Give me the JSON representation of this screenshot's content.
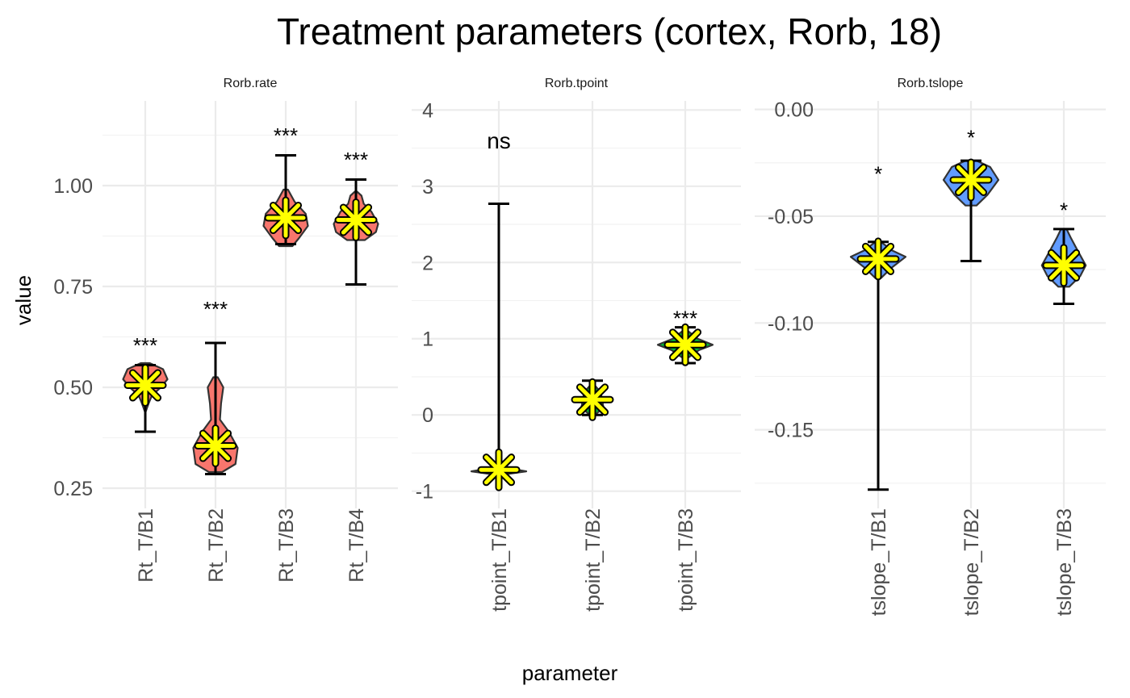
{
  "chart_data": {
    "type": "violin",
    "title": "Treatment parameters (cortex, Rorb, 18)",
    "xlabel": "parameter",
    "ylabel": "value",
    "colors": {
      "rate": "#F8766D",
      "tpoint": "#00BA38",
      "tslope": "#619CFF",
      "mean_marker": "#FFFF00"
    },
    "panels": [
      {
        "strip": "Rorb.rate",
        "color": "#F8766D",
        "ylim": [
          0.22,
          1.21
        ],
        "ticks": [
          0.25,
          0.5,
          0.75,
          1.0
        ],
        "tick_labels": [
          "0.25",
          "0.50",
          "0.75",
          "1.00"
        ],
        "groups": [
          {
            "label": "Rt_T/B1",
            "mean": 0.505,
            "whisker": [
              0.39,
              0.555
            ],
            "box": [
              0.47,
              0.54
            ],
            "sig": "***",
            "sig_y": 0.61,
            "violin": [
              [
                0.44,
                0.02
              ],
              [
                0.46,
                0.15
              ],
              [
                0.48,
                0.3
              ],
              [
                0.5,
                0.7
              ],
              [
                0.52,
                1
              ],
              [
                0.545,
                0.8
              ],
              [
                0.56,
                0.2
              ]
            ]
          },
          {
            "label": "Rt_T/B2",
            "mean": 0.355,
            "whisker": [
              0.285,
              0.61
            ],
            "box": [
              0.33,
              0.39
            ],
            "sig": "***",
            "sig_y": 0.7,
            "violin": [
              [
                0.29,
                0.3
              ],
              [
                0.31,
                0.9
              ],
              [
                0.35,
                1
              ],
              [
                0.39,
                0.6
              ],
              [
                0.42,
                0.2
              ],
              [
                0.46,
                0.25
              ],
              [
                0.5,
                0.35
              ],
              [
                0.525,
                0.1
              ]
            ]
          },
          {
            "label": "Rt_T/B3",
            "mean": 0.92,
            "whisker": [
              0.855,
              1.075
            ],
            "box": [
              0.88,
              0.96
            ],
            "sig": "***",
            "sig_y": 1.13,
            "violin": [
              [
                0.85,
                0.3
              ],
              [
                0.87,
                0.6
              ],
              [
                0.9,
                1
              ],
              [
                0.93,
                0.9
              ],
              [
                0.96,
                0.4
              ],
              [
                0.99,
                0.1
              ]
            ]
          },
          {
            "label": "Rt_T/B4",
            "mean": 0.915,
            "whisker": [
              0.755,
              1.015
            ],
            "box": [
              0.87,
              0.96
            ],
            "sig": "***",
            "sig_y": 1.07,
            "violin": [
              [
                0.865,
                0.4
              ],
              [
                0.885,
                0.9
              ],
              [
                0.905,
                1
              ],
              [
                0.935,
                0.7
              ],
              [
                0.955,
                0.35
              ],
              [
                0.975,
                0.25
              ],
              [
                0.985,
                0.05
              ]
            ]
          }
        ]
      },
      {
        "strip": "Rorb.tpoint",
        "color": "#00BA38",
        "ylim": [
          -1.12,
          4.12
        ],
        "ticks": [
          -1,
          0,
          1,
          2,
          3,
          4
        ],
        "tick_labels": [
          "-1",
          "0",
          "1",
          "2",
          "3",
          "4"
        ],
        "groups": [
          {
            "label": "tpoint_T/B1",
            "mean": -0.72,
            "whisker": [
              -0.75,
              2.77
            ],
            "box": [
              -0.74,
              -0.7
            ],
            "sig": "ns",
            "sig_y": 3.6,
            "violin": [
              [
                -0.79,
                0.05
              ],
              [
                -0.76,
                0.6
              ],
              [
                -0.74,
                1
              ],
              [
                -0.71,
                0.5
              ],
              [
                -0.68,
                0.05
              ]
            ]
          },
          {
            "label": "tpoint_T/B2",
            "mean": 0.2,
            "whisker": [
              0.0,
              0.45
            ],
            "box": [
              0.13,
              0.27
            ],
            "sig": "",
            "sig_y": 0.5,
            "violin": [
              [
                0.0,
                0.1
              ],
              [
                0.1,
                0.4
              ],
              [
                0.2,
                0.35
              ],
              [
                0.3,
                0.3
              ],
              [
                0.4,
                0.05
              ]
            ]
          },
          {
            "label": "tpoint_T/B3",
            "mean": 0.92,
            "whisker": [
              0.68,
              1.15
            ],
            "box": [
              0.86,
              0.97
            ],
            "sig": "***",
            "sig_y": 1.3,
            "violin": [
              [
                0.75,
                0.1
              ],
              [
                0.85,
                0.5
              ],
              [
                0.92,
                1
              ],
              [
                1.0,
                0.45
              ],
              [
                1.1,
                0.1
              ]
            ]
          }
        ]
      },
      {
        "strip": "Rorb.tslope",
        "color": "#619CFF",
        "ylim": [
          -0.183,
          0.004
        ],
        "ticks": [
          -0.15,
          -0.1,
          -0.05,
          0.0
        ],
        "tick_labels": [
          "-0.15",
          "-0.10",
          "-0.05",
          "0.00"
        ],
        "groups": [
          {
            "label": "tslope_T/B1",
            "mean": -0.07,
            "whisker": [
              -0.178,
              -0.062
            ],
            "box": [
              -0.073,
              -0.066
            ],
            "sig": "*",
            "sig_y": -0.029,
            "violin": [
              [
                -0.079,
                0.1
              ],
              [
                -0.074,
                0.5
              ],
              [
                -0.069,
                1
              ],
              [
                -0.066,
                0.5
              ],
              [
                -0.062,
                0.1
              ]
            ]
          },
          {
            "label": "tslope_T/B2",
            "mean": -0.033,
            "whisker": [
              -0.071,
              -0.024
            ],
            "box": [
              -0.038,
              -0.028
            ],
            "sig": "*",
            "sig_y": -0.012,
            "violin": [
              [
                -0.045,
                0.2
              ],
              [
                -0.04,
                0.6
              ],
              [
                -0.033,
                1
              ],
              [
                -0.027,
                0.7
              ],
              [
                -0.024,
                0.2
              ]
            ]
          },
          {
            "label": "tslope_T/B3",
            "mean": -0.073,
            "whisker": [
              -0.091,
              -0.056
            ],
            "box": [
              -0.078,
              -0.066
            ],
            "sig": "*",
            "sig_y": -0.046,
            "violin": [
              [
                -0.083,
                0.2
              ],
              [
                -0.078,
                0.6
              ],
              [
                -0.073,
                0.8
              ],
              [
                -0.066,
                0.5
              ],
              [
                -0.06,
                0.25
              ],
              [
                -0.056,
                0.1
              ]
            ]
          }
        ]
      }
    ]
  }
}
